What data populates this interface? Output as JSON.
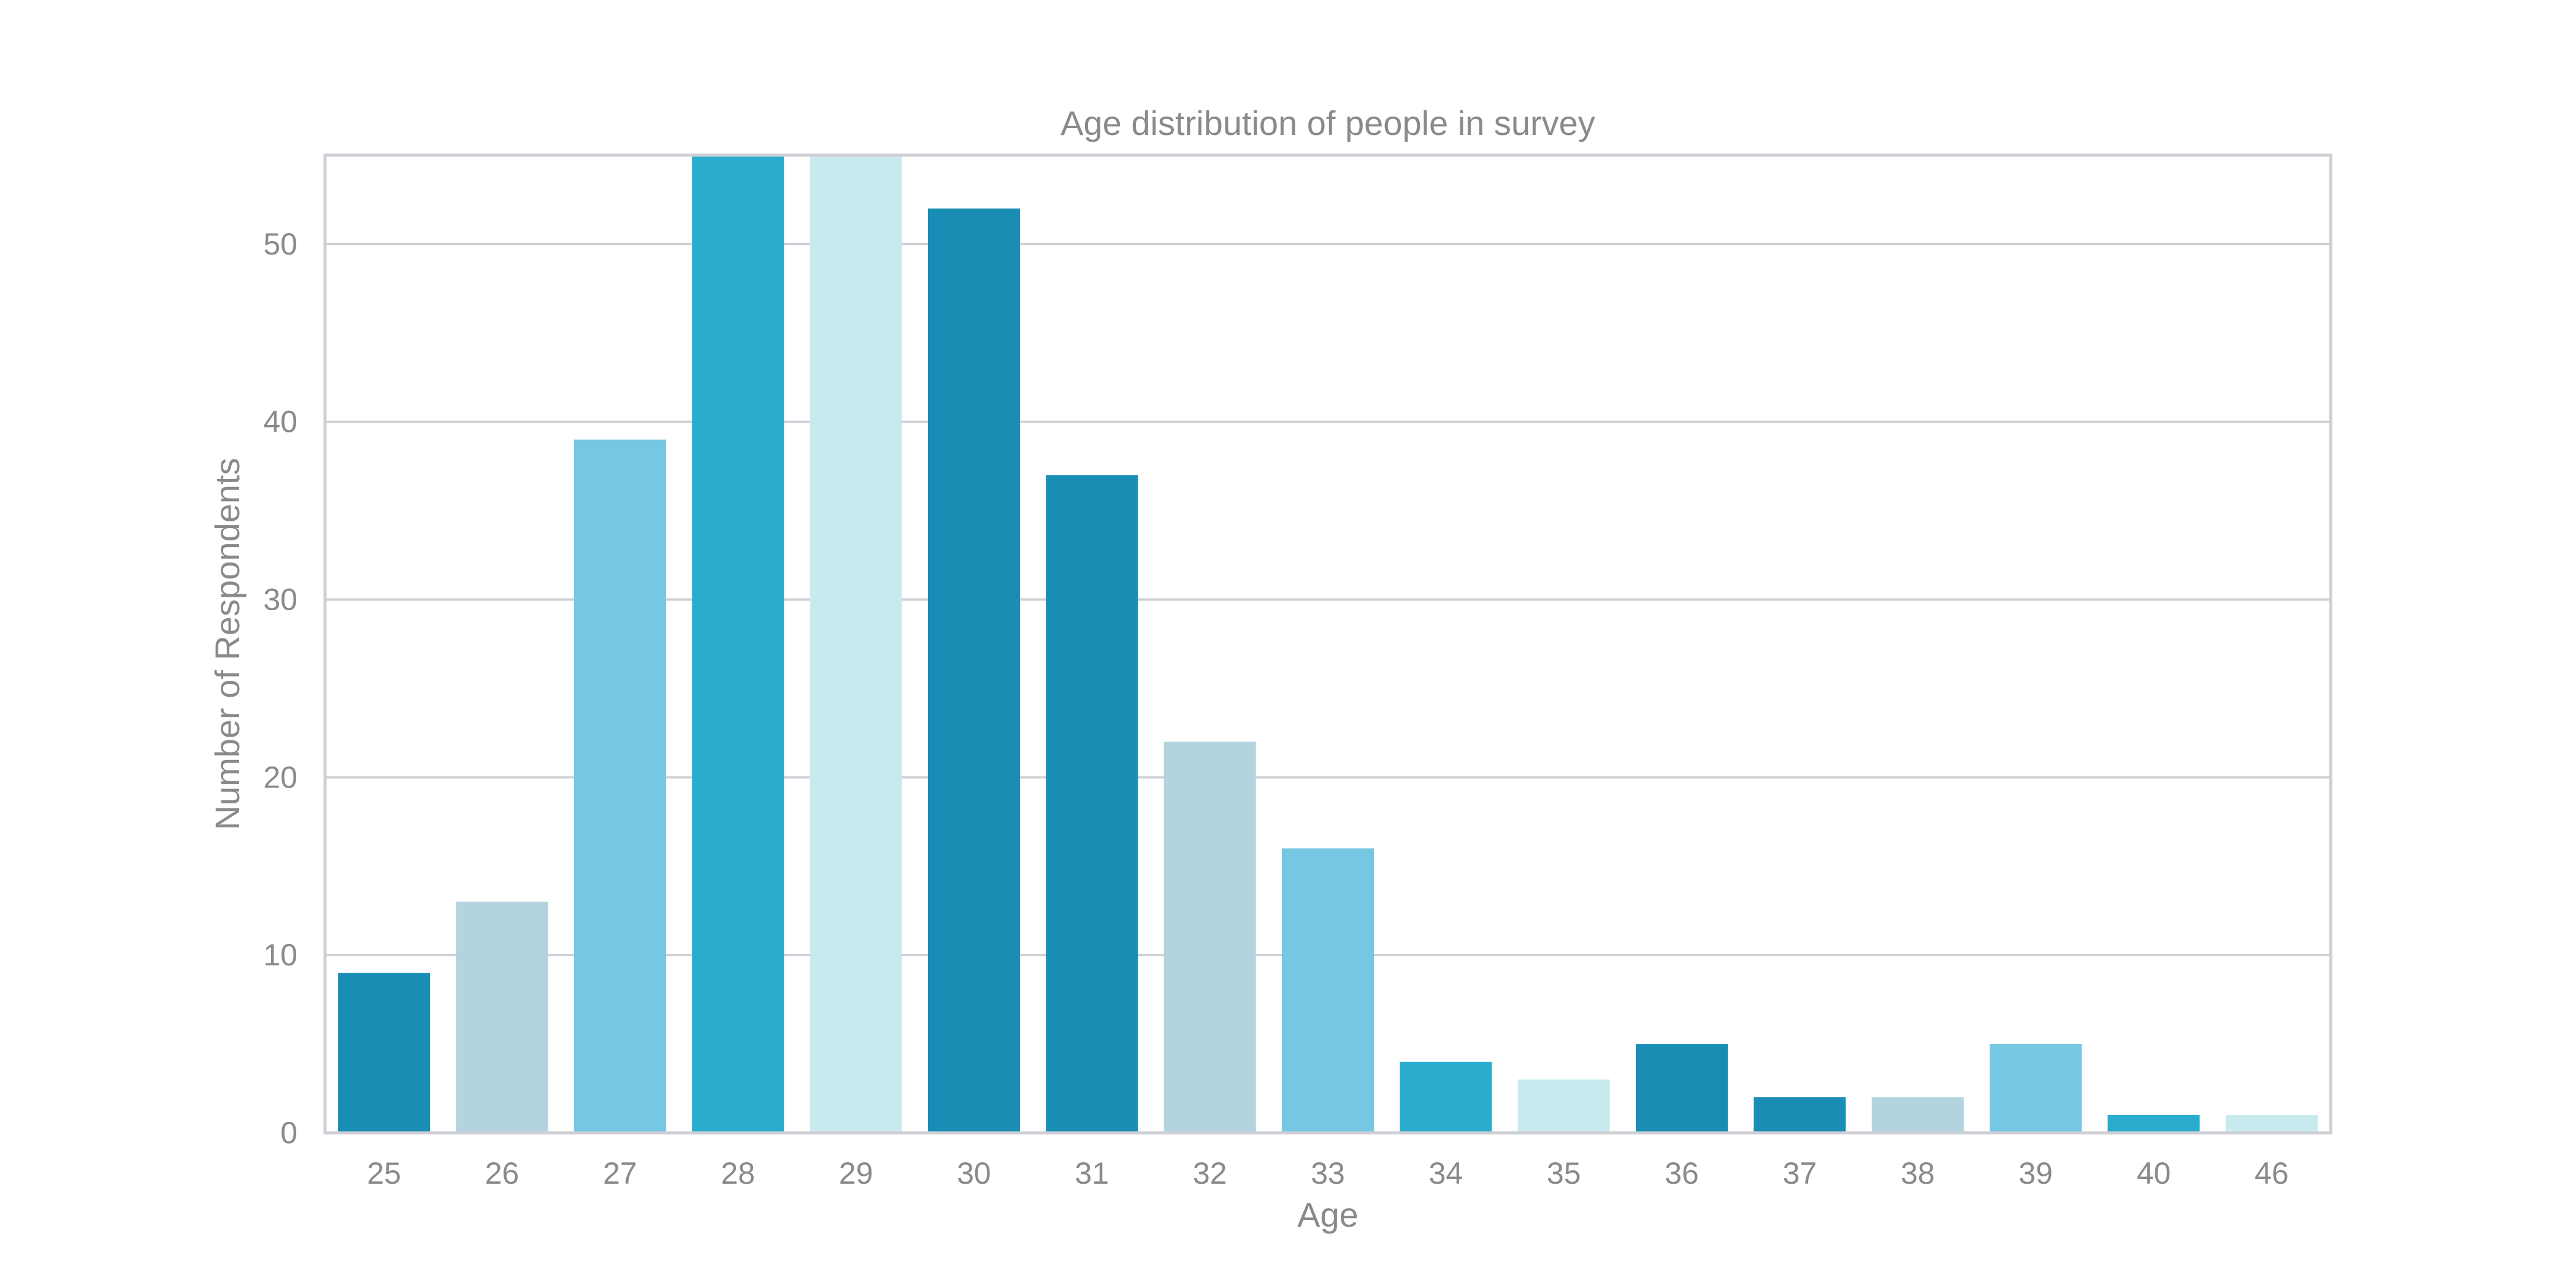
{
  "chart_data": {
    "type": "bar",
    "title": "Age distribution of people in survey",
    "xlabel": "Age",
    "ylabel": "Number of Respondents",
    "categories": [
      "25",
      "26",
      "27",
      "28",
      "29",
      "30",
      "31",
      "32",
      "33",
      "34",
      "35",
      "36",
      "37",
      "38",
      "39",
      "40",
      "46"
    ],
    "values": [
      9,
      13,
      39,
      55,
      55,
      52,
      37,
      22,
      16,
      4,
      3,
      5,
      2,
      2,
      5,
      1,
      1
    ],
    "ylim": [
      0,
      55
    ],
    "yticks": [
      0,
      10,
      20,
      30,
      40,
      50
    ],
    "grid": true,
    "legend": "none",
    "palette": [
      "#1a8db5",
      "#b3d4df",
      "#76c7e2",
      "#29acce",
      "#c8eaef"
    ],
    "colors": [
      "#1a8db5",
      "#b3d4df",
      "#76c7e2",
      "#29acce",
      "#c8eaef",
      "#1a8db5",
      "#1a8db5",
      "#b3d4df",
      "#76c7e2",
      "#29acce",
      "#c8eaef",
      "#1a8db5",
      "#1a8db5",
      "#b3d4df",
      "#76c7e2",
      "#29acce",
      "#c8eaef"
    ],
    "text_color": "#8a8a8a",
    "grid_color": "#cfcfd6",
    "frame_color": "#cfcfd6"
  }
}
